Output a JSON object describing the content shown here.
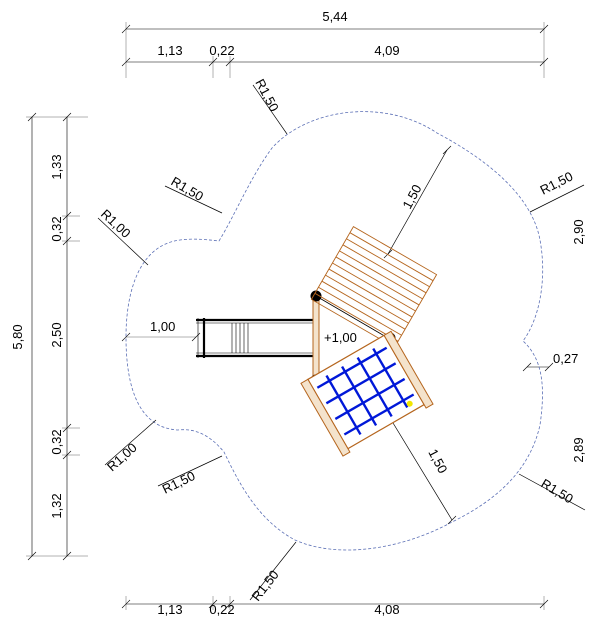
{
  "top_dims": {
    "overall": "5,44",
    "seg1": "1,13",
    "seg2": "0,22",
    "seg3": "4,09"
  },
  "bottom_dims": {
    "seg1": "1,13",
    "seg2": "0,22",
    "seg3": "4,08"
  },
  "left_dims": {
    "overall": "5,80",
    "seg1": "1,33",
    "seg2": "0,32",
    "seg3": "2,50",
    "seg4": "0,32",
    "seg5": "1,32"
  },
  "right_dims": {
    "upper": "2,90",
    "gap": "0,27",
    "lower": "2,89"
  },
  "radius_labels": {
    "top_left_outer": "R1,50",
    "top_left_inner": "R1,50",
    "left_upper": "R1,00",
    "left_lower": "R1,00",
    "bottom_left_inner": "R1,50",
    "bottom_left_outer": "R1,50",
    "top_right": "R1,50",
    "bottom_right": "R1,50"
  },
  "equipment": {
    "platform_height": "+1,00",
    "slide_exit_height": "1,00",
    "clearance_upper": "1,50",
    "clearance_lower": "1,50"
  },
  "colors": {
    "outline": "#5b6fb5",
    "wood": "#b5651d",
    "net": "#0018d8",
    "accent": "#f2e600"
  }
}
